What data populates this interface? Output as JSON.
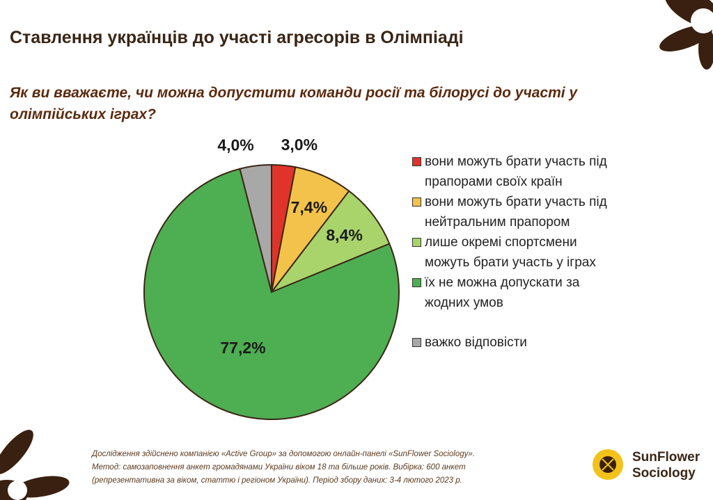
{
  "chart_data": {
    "type": "pie",
    "title": "Ставлення українців до участі агресорів в Олімпіаді",
    "subtitle": "Як ви вважаєте, чи можна допустити команди росії та білорусі до участі у олімпійських іграх?",
    "categories": [
      "вони можуть брати участь під прапорами своїх країн",
      "вони можуть брати участь під нейтральним прапором",
      "лише окремі спортсмени можуть брати участь у іграх",
      "їх не можна допускати за жодних умов",
      "важко відповісти"
    ],
    "values": [
      3.0,
      7.4,
      8.4,
      77.2,
      4.0
    ],
    "value_labels": [
      "3,0%",
      "7,4%",
      "8,4%",
      "77,2%",
      "4,0%"
    ],
    "colors": [
      "#e0342b",
      "#f3c24a",
      "#a9d46b",
      "#4eae52",
      "#a8a8a8"
    ],
    "legend": "right",
    "notes": [
      "Дослідження здійснено компанією «Active Group» за допомогою онлайн-панелі «SunFlower Sociology».",
      "Метод: самозаповнення анкет громадянами України віком 18 та більше років. Вибірка: 600 анкет",
      "(репрезентативна за віком, статтю і регіоном України). Період збору даних: 3-4 лютого 2023 р."
    ],
    "logo": [
      "SunFlower",
      "Sociology"
    ]
  }
}
